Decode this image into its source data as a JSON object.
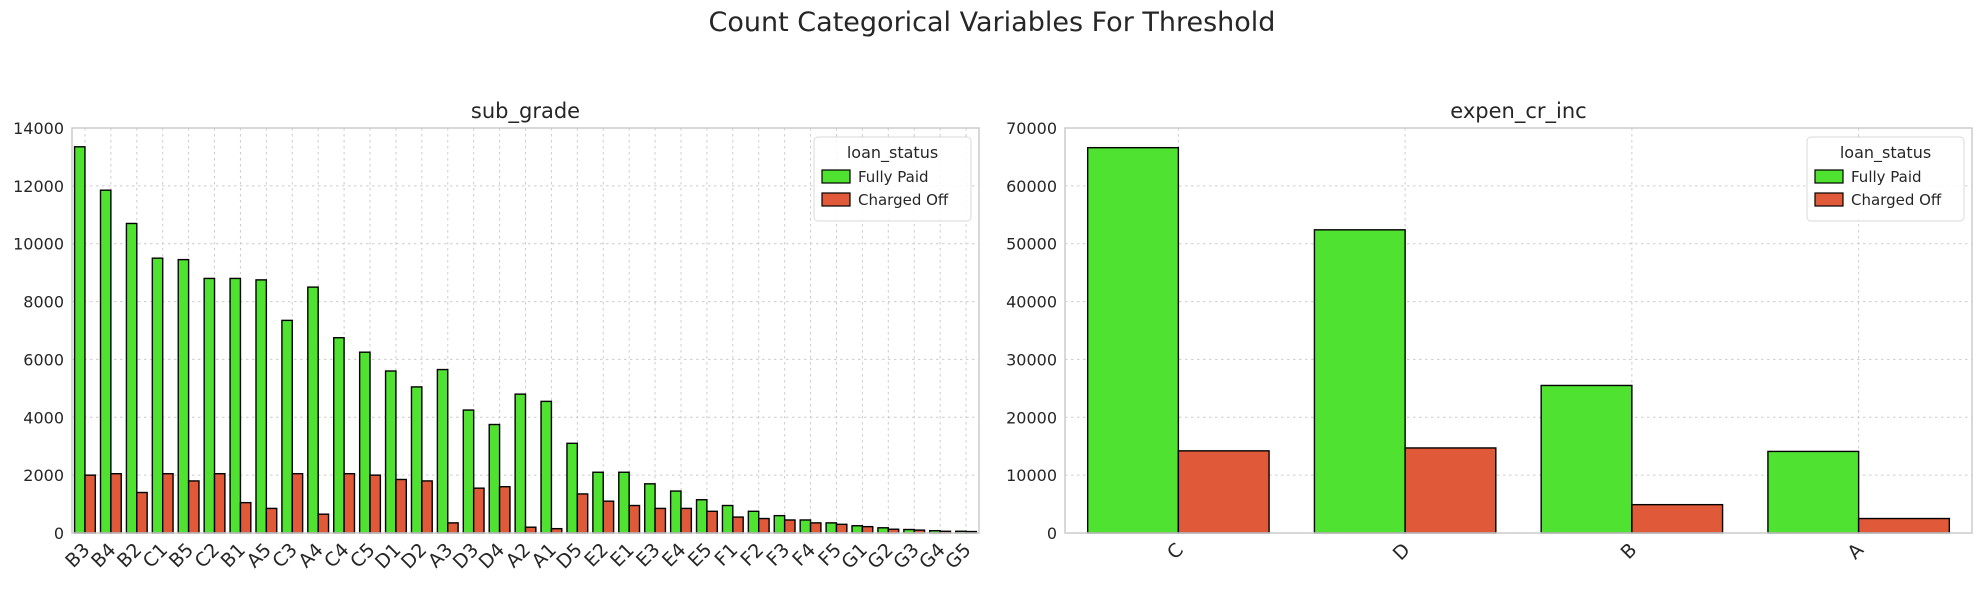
{
  "figure": {
    "title": "Count Categorical Variables For Threshold"
  },
  "colors": {
    "fully_paid": "#50e230",
    "charged_off": "#e05a3a",
    "grid": "#cccccc",
    "edge": "#000000"
  },
  "chart_data": [
    {
      "type": "bar",
      "title": "sub_grade",
      "xlabel": "",
      "ylabel": "",
      "ylim": [
        0,
        14000
      ],
      "yticks": [
        0,
        2000,
        4000,
        6000,
        8000,
        10000,
        12000,
        14000
      ],
      "categories": [
        "B3",
        "B4",
        "B2",
        "C1",
        "B5",
        "C2",
        "B1",
        "A5",
        "C3",
        "A4",
        "C4",
        "C5",
        "D1",
        "D2",
        "A3",
        "D3",
        "D4",
        "A2",
        "A1",
        "D5",
        "E2",
        "E1",
        "E3",
        "E4",
        "E5",
        "F1",
        "F2",
        "F3",
        "F4",
        "F5",
        "G1",
        "G2",
        "G3",
        "G4",
        "G5"
      ],
      "series": [
        {
          "name": "Fully Paid",
          "values": [
            13350,
            11850,
            10700,
            9500,
            9450,
            8800,
            8800,
            8750,
            7350,
            8500,
            6750,
            6250,
            5600,
            5050,
            5650,
            4250,
            3750,
            4800,
            4550,
            3100,
            2100,
            2100,
            1700,
            1450,
            1150,
            950,
            750,
            600,
            450,
            350,
            250,
            180,
            120,
            80,
            60
          ]
        },
        {
          "name": "Charged Off",
          "values": [
            2000,
            2050,
            1400,
            2050,
            1800,
            2050,
            1050,
            850,
            2050,
            650,
            2050,
            2000,
            1850,
            1800,
            350,
            1550,
            1600,
            200,
            150,
            1350,
            1100,
            950,
            850,
            850,
            750,
            550,
            500,
            450,
            350,
            300,
            220,
            130,
            100,
            60,
            50
          ]
        }
      ],
      "legend": {
        "title": "loan_status",
        "loc": "upper right",
        "entries": [
          "Fully Paid",
          "Charged Off"
        ]
      },
      "grid": true
    },
    {
      "type": "bar",
      "title": "expen_cr_inc",
      "xlabel": "",
      "ylabel": "",
      "ylim": [
        0,
        70000
      ],
      "yticks": [
        0,
        10000,
        20000,
        30000,
        40000,
        50000,
        60000,
        70000
      ],
      "categories": [
        "C",
        "D",
        "B",
        "A"
      ],
      "series": [
        {
          "name": "Fully Paid",
          "values": [
            66600,
            52400,
            25500,
            14100
          ]
        },
        {
          "name": "Charged Off",
          "values": [
            14200,
            14700,
            4900,
            2500
          ]
        }
      ],
      "legend": {
        "title": "loan_status",
        "loc": "upper right",
        "entries": [
          "Fully Paid",
          "Charged Off"
        ]
      },
      "grid": true
    }
  ]
}
